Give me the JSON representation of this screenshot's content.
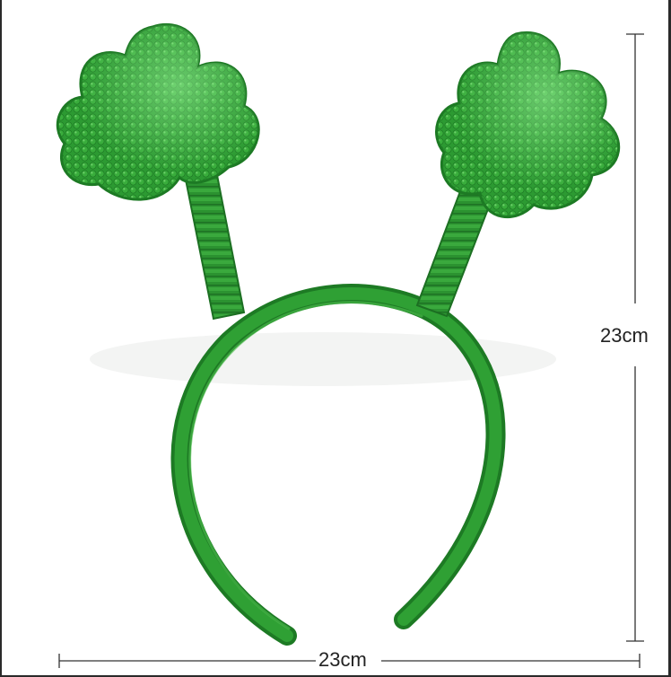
{
  "image": {
    "subject": "shamrock-headband",
    "colors": {
      "background": "#ffffff",
      "green_dark": "#1e7a25",
      "green_mid": "#2f9a34",
      "green_light": "#49b84a",
      "sequin_highlight": "#8fe08a",
      "dimension_line": "#333333"
    }
  },
  "dimensions": {
    "height_label": "23cm",
    "width_label": "23cm"
  }
}
